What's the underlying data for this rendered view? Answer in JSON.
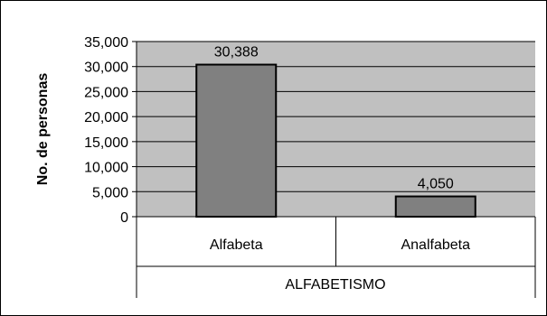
{
  "chart_data": {
    "type": "bar",
    "title": "",
    "xlabel": "ALFABETISMO",
    "ylabel": "No. de personas",
    "categories": [
      "Alfabeta",
      "Analfabeta"
    ],
    "values": [
      30388,
      4050
    ],
    "value_labels": [
      "30,388",
      "4,050"
    ],
    "ylim": [
      0,
      35000
    ],
    "yticks": [
      0,
      5000,
      10000,
      15000,
      20000,
      25000,
      30000,
      35000
    ],
    "ytick_labels": [
      "0",
      "5,000",
      "10,000",
      "15,000",
      "20,000",
      "25,000",
      "30,000",
      "35,000"
    ],
    "grid": true,
    "legend": "none",
    "colors": {
      "plot_background": "#c0c0c0",
      "bar_fill": "#808080",
      "bar_stroke": "#000000",
      "gridline": "#000000",
      "frame": "#000000"
    }
  }
}
